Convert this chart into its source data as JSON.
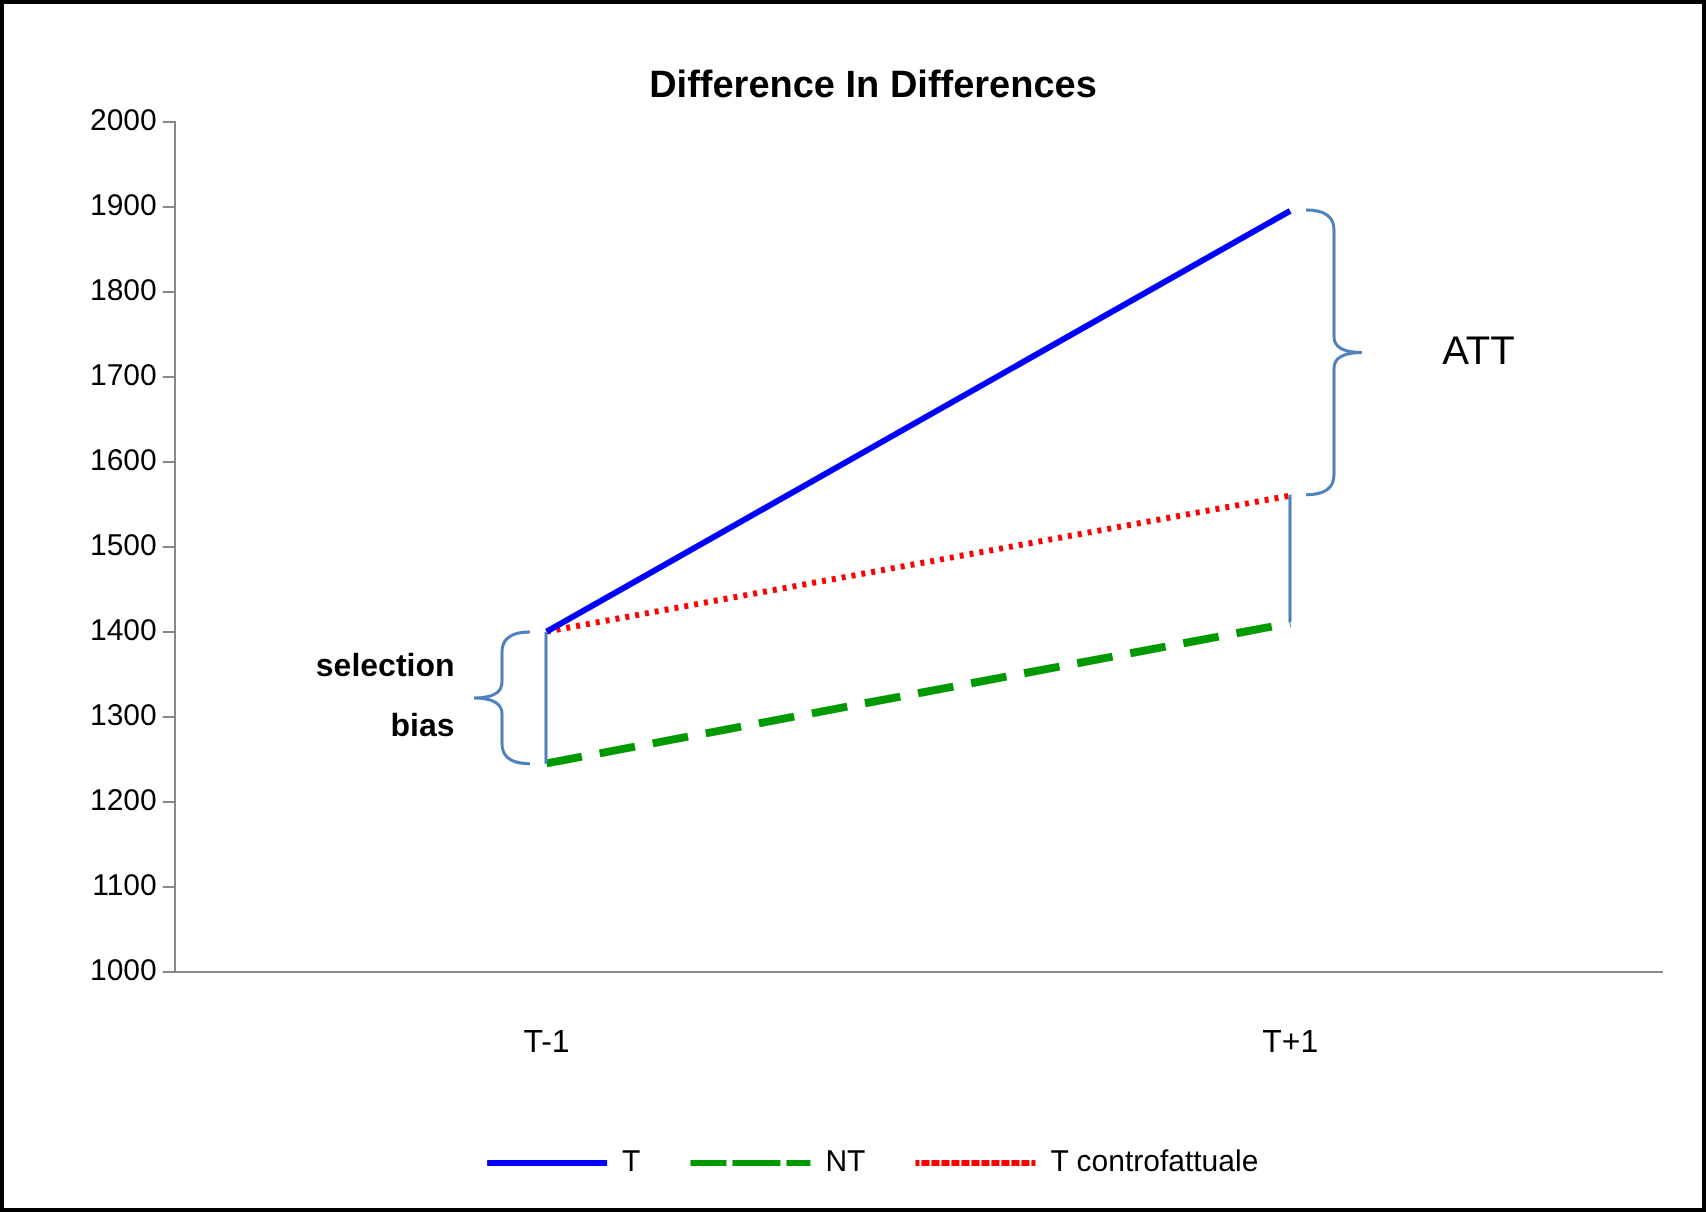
{
  "chart_data": {
    "type": "line",
    "title": "Difference In Differences",
    "categories": [
      "T-1",
      "T+1"
    ],
    "series": [
      {
        "name": "T",
        "color": "#0000ff",
        "values": [
          1400,
          1895
        ],
        "line_style": "solid"
      },
      {
        "name": "NT",
        "color": "#009900",
        "values": [
          1245,
          1410
        ],
        "line_style": "dashed"
      },
      {
        "name": "T controfattuale",
        "color": "#ff0000",
        "values": [
          1400,
          1560
        ],
        "line_style": "dotted"
      }
    ],
    "ylim": [
      1000,
      2000
    ],
    "yticks": [
      1000,
      1100,
      1200,
      1300,
      1400,
      1500,
      1600,
      1700,
      1800,
      1900,
      2000
    ],
    "grid": false,
    "legend": "bottom",
    "marker": "none",
    "annotations": [
      "ATT",
      "selection bias"
    ]
  }
}
